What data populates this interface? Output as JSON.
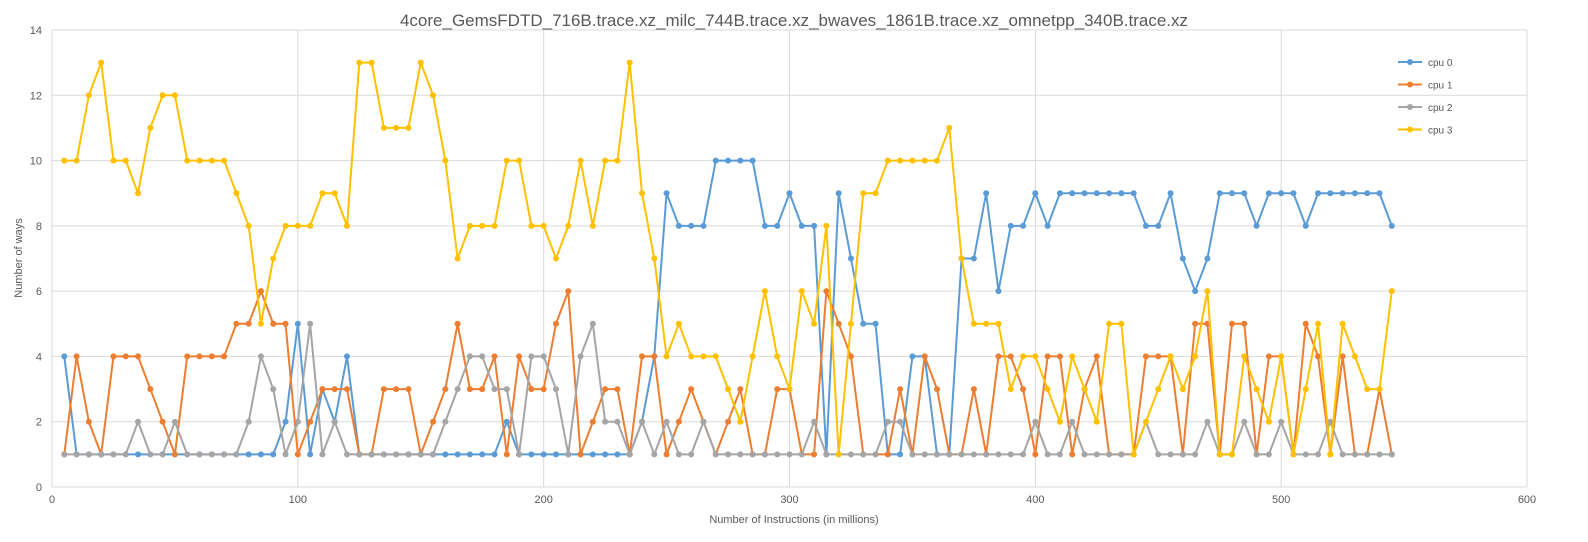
{
  "chart_data": {
    "type": "line",
    "title": "4core_GemsFDTD_716B.trace.xz_milc_744B.trace.xz_bwaves_1861B.trace.xz_omnetpp_340B.trace.xz",
    "xlabel": "Number  of Instructions (in millions)",
    "ylabel": "Number  of ways",
    "xlim": [
      0,
      600
    ],
    "ylim": [
      0,
      14
    ],
    "xticks": [
      0,
      100,
      200,
      300,
      400,
      500,
      600
    ],
    "yticks": [
      0,
      2,
      4,
      6,
      8,
      10,
      12,
      14
    ],
    "grid": true,
    "legend_position": "top-right",
    "x": [
      5,
      10,
      15,
      20,
      25,
      30,
      35,
      40,
      45,
      50,
      55,
      60,
      65,
      70,
      75,
      80,
      85,
      90,
      95,
      100,
      105,
      110,
      115,
      120,
      125,
      130,
      135,
      140,
      145,
      150,
      155,
      160,
      165,
      170,
      175,
      180,
      185,
      190,
      195,
      200,
      205,
      210,
      215,
      220,
      225,
      230,
      235,
      240,
      245,
      250,
      255,
      260,
      265,
      270,
      275,
      280,
      285,
      290,
      295,
      300,
      305,
      310,
      315,
      320,
      325,
      330,
      335,
      340,
      345,
      350,
      355,
      360,
      365,
      370,
      375,
      380,
      385,
      390,
      395,
      400,
      405,
      410,
      415,
      420,
      425,
      430,
      435,
      440,
      445,
      450,
      455,
      460,
      465,
      470,
      475,
      480,
      485,
      490,
      495,
      500,
      505,
      510,
      515,
      520,
      525,
      530,
      535,
      540,
      545
    ],
    "series": [
      {
        "name": "cpu 0",
        "color": "#5b9bd5",
        "values": [
          4,
          1,
          1,
          1,
          1,
          1,
          1,
          1,
          1,
          1,
          1,
          1,
          1,
          1,
          1,
          1,
          1,
          1,
          2,
          5,
          1,
          3,
          2,
          4,
          1,
          1,
          1,
          1,
          1,
          1,
          1,
          1,
          1,
          1,
          1,
          1,
          2,
          1,
          1,
          1,
          1,
          1,
          1,
          1,
          1,
          1,
          1,
          2,
          4,
          9,
          8,
          8,
          8,
          10,
          10,
          10,
          10,
          8,
          8,
          9,
          8,
          8,
          1,
          9,
          7,
          5,
          5,
          1,
          1,
          4,
          4,
          1,
          1,
          7,
          7,
          9,
          6,
          8,
          8,
          9,
          8,
          9,
          9,
          9,
          9,
          9,
          9,
          9,
          8,
          8,
          9,
          7,
          6,
          7,
          9,
          9,
          9,
          8,
          9,
          9,
          9,
          8,
          9,
          9,
          9,
          9,
          9,
          9,
          8
        ]
      },
      {
        "name": "cpu 1",
        "color": "#ed7d31",
        "values": [
          1,
          4,
          2,
          1,
          4,
          4,
          4,
          3,
          2,
          1,
          4,
          4,
          4,
          4,
          5,
          5,
          6,
          5,
          5,
          1,
          2,
          3,
          3,
          3,
          1,
          1,
          3,
          3,
          3,
          1,
          2,
          3,
          5,
          3,
          3,
          4,
          1,
          4,
          3,
          3,
          5,
          6,
          1,
          2,
          3,
          3,
          1,
          4,
          4,
          1,
          2,
          3,
          2,
          1,
          2,
          3,
          1,
          1,
          3,
          3,
          1,
          1,
          6,
          5,
          4,
          1,
          1,
          1,
          3,
          1,
          4,
          3,
          1,
          1,
          3,
          1,
          4,
          4,
          3,
          1,
          4,
          4,
          1,
          3,
          4,
          1,
          1,
          1,
          4,
          4,
          4,
          1,
          5,
          5,
          1,
          5,
          5,
          1,
          4,
          4,
          1,
          5,
          4,
          1,
          4,
          1,
          1,
          3,
          1
        ]
      },
      {
        "name": "cpu 2",
        "color": "#a5a5a5",
        "values": [
          1,
          1,
          1,
          1,
          1,
          1,
          2,
          1,
          1,
          2,
          1,
          1,
          1,
          1,
          1,
          2,
          4,
          3,
          1,
          2,
          5,
          1,
          2,
          1,
          1,
          1,
          1,
          1,
          1,
          1,
          1,
          2,
          3,
          4,
          4,
          3,
          3,
          1,
          4,
          4,
          3,
          1,
          4,
          5,
          2,
          2,
          1,
          2,
          1,
          2,
          1,
          1,
          2,
          1,
          1,
          1,
          1,
          1,
          1,
          1,
          1,
          2,
          1,
          1,
          1,
          1,
          1,
          2,
          2,
          1,
          1,
          1,
          1,
          1,
          1,
          1,
          1,
          1,
          1,
          2,
          1,
          1,
          2,
          1,
          1,
          1,
          1,
          1,
          2,
          1,
          1,
          1,
          1,
          2,
          1,
          1,
          2,
          1,
          1,
          2,
          1,
          1,
          1,
          2,
          1,
          1,
          1,
          1,
          1
        ]
      },
      {
        "name": "cpu 3",
        "color": "#ffc000",
        "values": [
          10,
          10,
          12,
          13,
          10,
          10,
          9,
          11,
          12,
          12,
          10,
          10,
          10,
          10,
          9,
          8,
          5,
          7,
          8,
          8,
          8,
          9,
          9,
          8,
          13,
          13,
          11,
          11,
          11,
          13,
          12,
          10,
          7,
          8,
          8,
          8,
          10,
          10,
          8,
          8,
          7,
          8,
          10,
          8,
          10,
          10,
          13,
          9,
          7,
          4,
          5,
          4,
          4,
          4,
          3,
          2,
          4,
          6,
          4,
          3,
          6,
          5,
          8,
          1,
          5,
          9,
          9,
          10,
          10,
          10,
          10,
          10,
          11,
          7,
          5,
          5,
          5,
          3,
          4,
          4,
          3,
          2,
          4,
          3,
          2,
          5,
          5,
          1,
          2,
          3,
          4,
          3,
          4,
          6,
          1,
          1,
          4,
          3,
          2,
          4,
          1,
          3,
          5,
          1,
          5,
          4,
          3,
          3,
          6
        ]
      }
    ]
  }
}
